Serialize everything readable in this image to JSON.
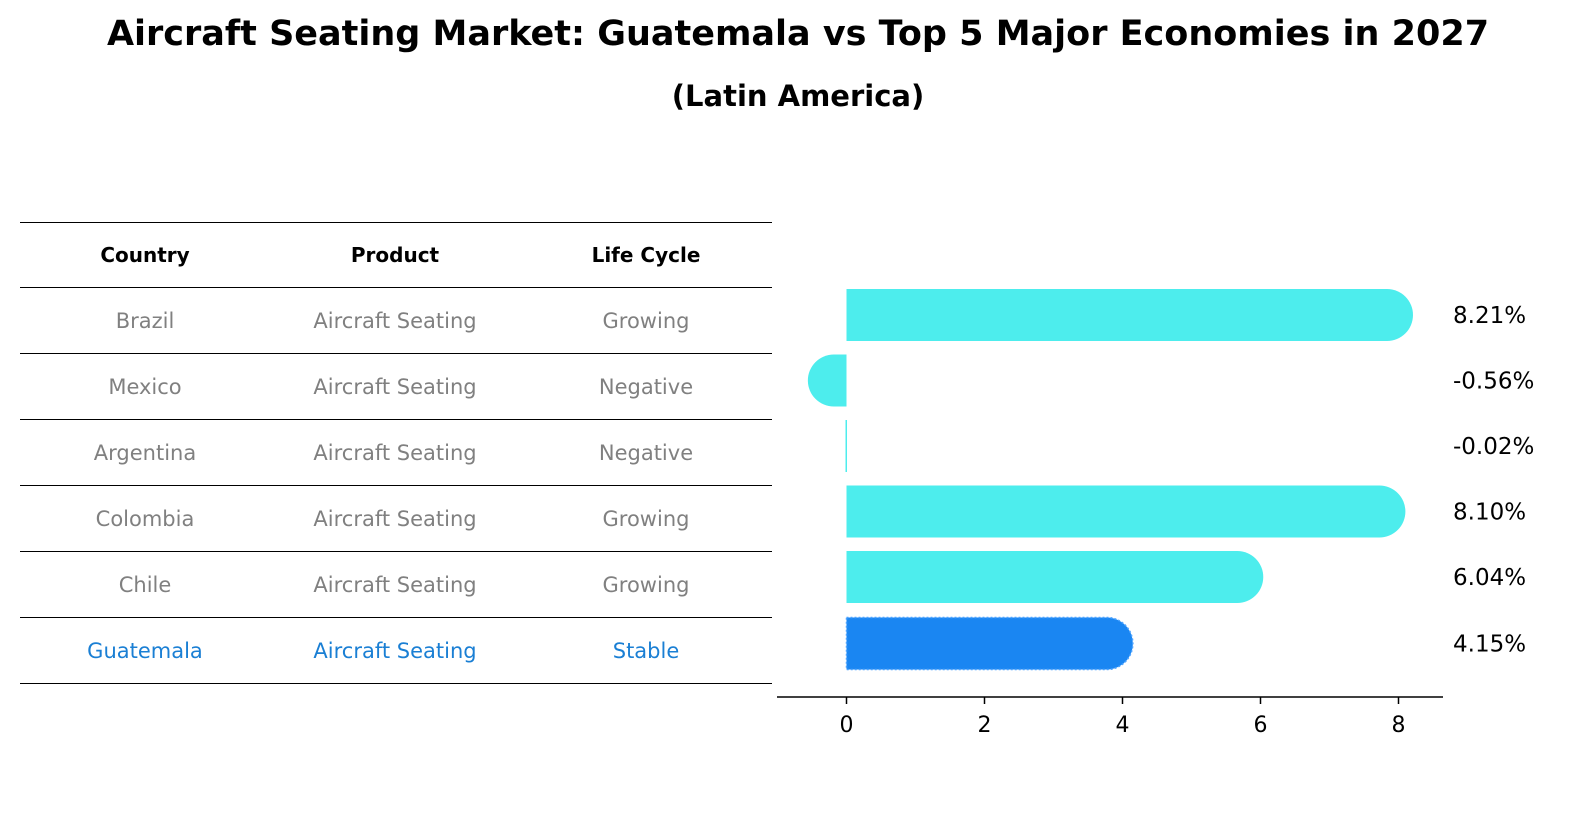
{
  "title": "Aircraft Seating Market: Guatemala vs Top 5 Major Economies in 2027",
  "subtitle": "(Latin America)",
  "table": {
    "headers": [
      "Country",
      "Product",
      "Life Cycle"
    ],
    "rows": [
      {
        "country": "Brazil",
        "product": "Aircraft Seating",
        "life_cycle": "Growing"
      },
      {
        "country": "Mexico",
        "product": "Aircraft Seating",
        "life_cycle": "Negative"
      },
      {
        "country": "Argentina",
        "product": "Aircraft Seating",
        "life_cycle": "Negative"
      },
      {
        "country": "Colombia",
        "product": "Aircraft Seating",
        "life_cycle": "Growing"
      },
      {
        "country": "Chile",
        "product": "Aircraft Seating",
        "life_cycle": "Growing"
      },
      {
        "country": "Guatemala",
        "product": "Aircraft Seating",
        "life_cycle": "Stable"
      }
    ],
    "highlight_row": "Guatemala",
    "text_color": "#808080",
    "highlight_color": "#1a7fd4"
  },
  "chart_data": {
    "type": "bar",
    "orientation": "horizontal",
    "categories": [
      "Brazil",
      "Mexico",
      "Argentina",
      "Colombia",
      "Chile",
      "Guatemala"
    ],
    "values": [
      8.21,
      -0.56,
      -0.02,
      8.1,
      6.04,
      4.15
    ],
    "value_labels": [
      "8.21%",
      "-0.56%",
      "-0.02%",
      "8.10%",
      "6.04%",
      "4.15%"
    ],
    "xticks": [
      0,
      2,
      4,
      6,
      8
    ],
    "xlim": [
      -1,
      8.6
    ],
    "grid": false,
    "legend": "none",
    "colors": {
      "default": "#4deded",
      "highlight": "#1a86f2"
    },
    "highlight": "Guatemala"
  }
}
